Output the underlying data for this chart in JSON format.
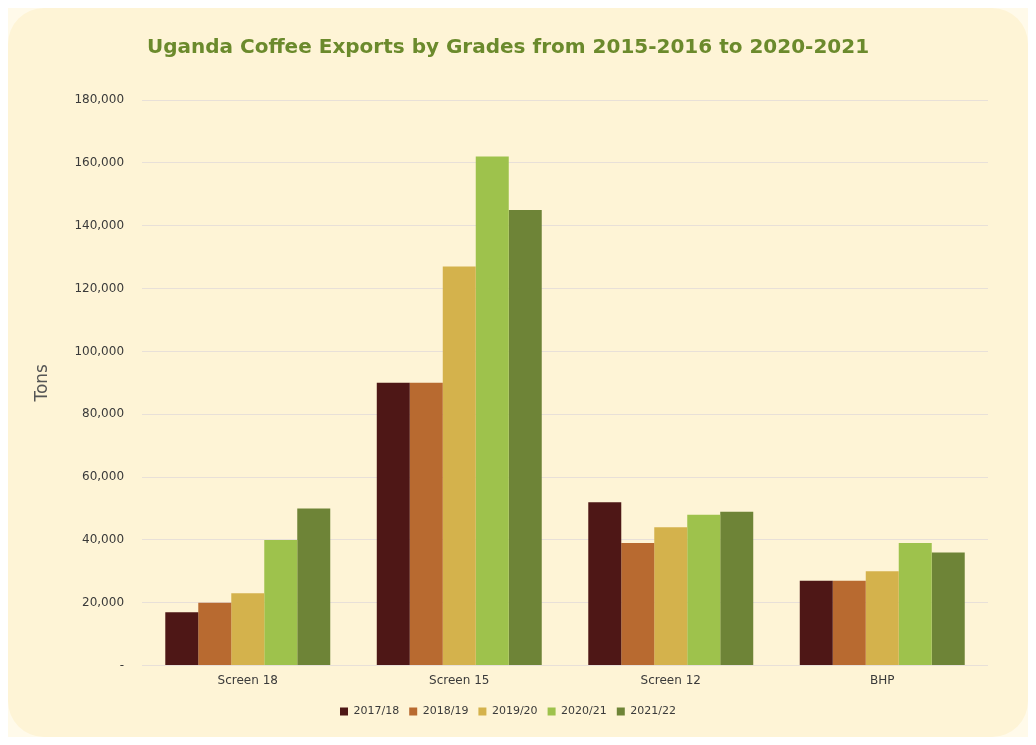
{
  "chart_data": {
    "type": "bar",
    "title": "Uganda Coffee Exports by Grades from 2015-2016 to 2020-2021",
    "ylabel": "Tons",
    "categories": [
      "Screen 18",
      "Screen 15",
      "Screen 12",
      "BHP"
    ],
    "series": [
      {
        "name": "2017/18",
        "color": "#4e1716",
        "values": [
          17000,
          90000,
          52000,
          27000
        ]
      },
      {
        "name": "2018/19",
        "color": "#b86a30",
        "values": [
          20000,
          90000,
          39000,
          27000
        ]
      },
      {
        "name": "2019/20",
        "color": "#d4b24c",
        "values": [
          23000,
          127000,
          44000,
          30000
        ]
      },
      {
        "name": "2020/21",
        "color": "#9ec24c",
        "values": [
          40000,
          162000,
          48000,
          39000
        ]
      },
      {
        "name": "2021/22",
        "color": "#6e8437",
        "values": [
          50000,
          145000,
          49000,
          36000
        ]
      }
    ],
    "ylim": [
      0,
      180000
    ],
    "yticks": [
      {
        "value": 0,
        "label": "-"
      },
      {
        "value": 20000,
        "label": "20,000"
      },
      {
        "value": 40000,
        "label": "40,000"
      },
      {
        "value": 60000,
        "label": "60,000"
      },
      {
        "value": 80000,
        "label": "80,000"
      },
      {
        "value": 100000,
        "label": "100,000"
      },
      {
        "value": 120000,
        "label": "120,000"
      },
      {
        "value": 140000,
        "label": "140,000"
      },
      {
        "value": 160000,
        "label": "160,000"
      },
      {
        "value": 180000,
        "label": "180,000"
      }
    ],
    "grid": "y",
    "legend": "bottom"
  }
}
